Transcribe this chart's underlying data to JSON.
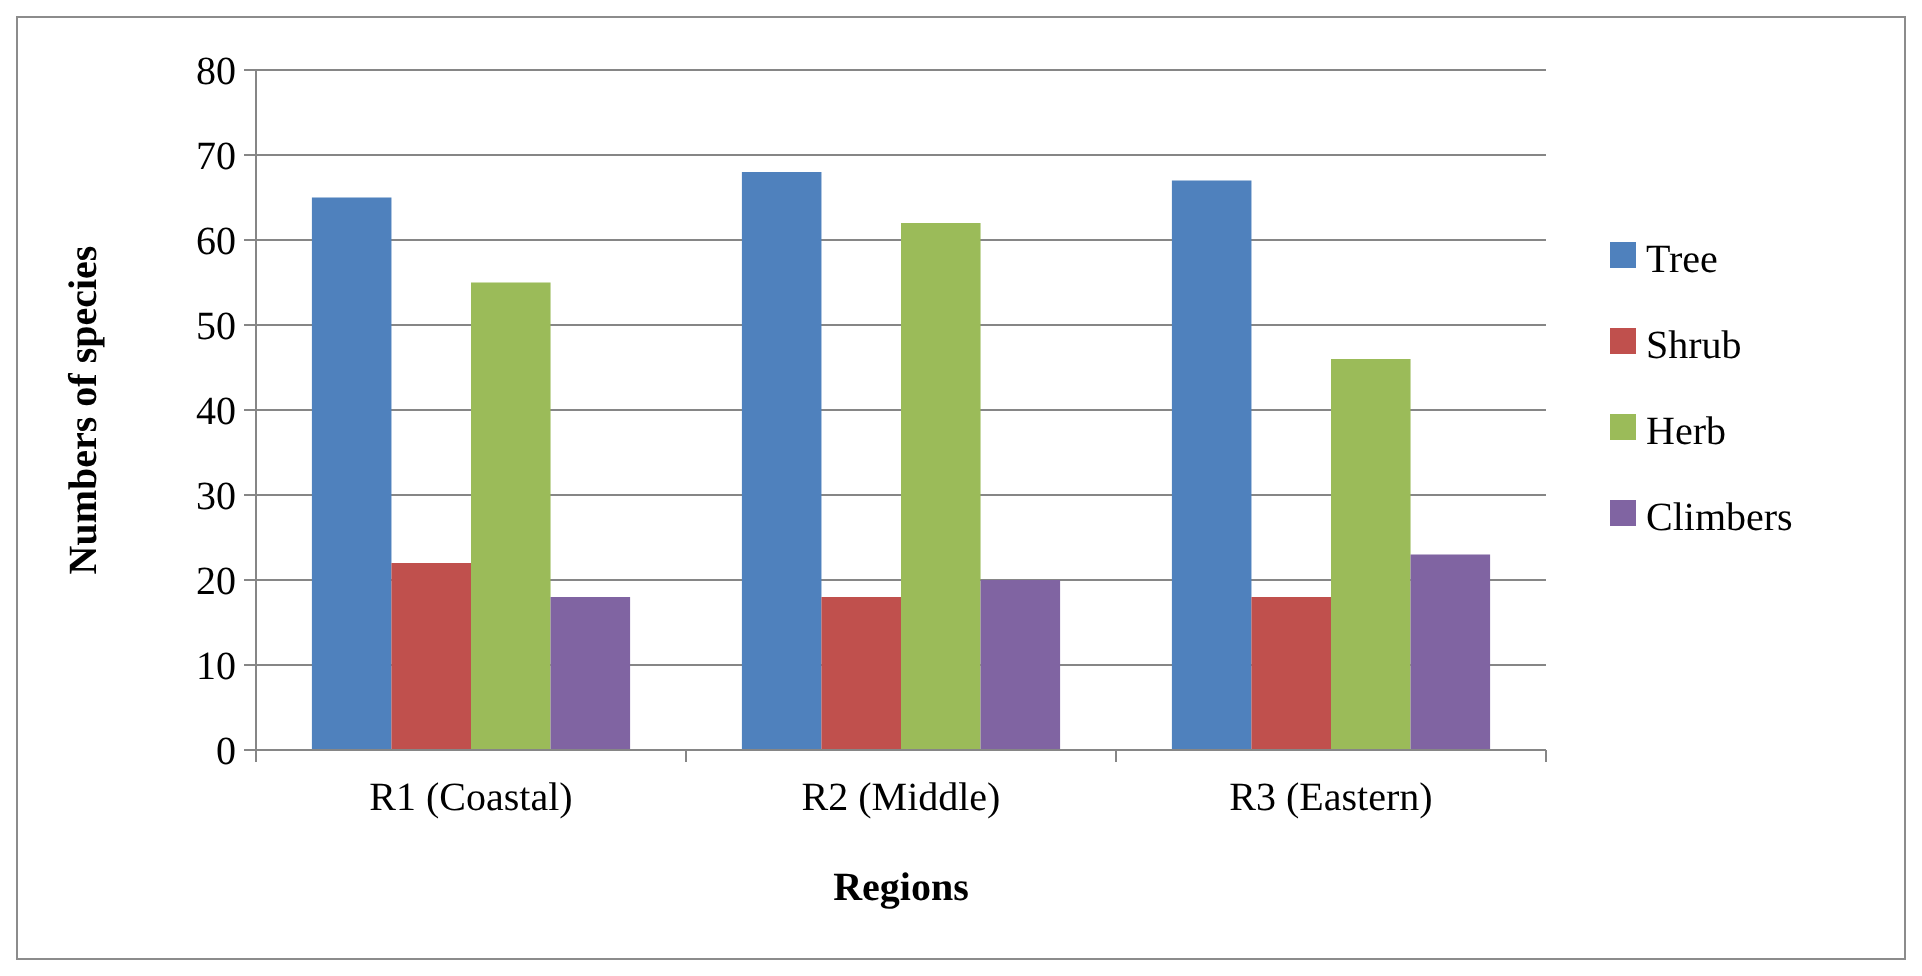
{
  "chart_data": {
    "type": "bar",
    "xlabel": "Regions",
    "ylabel": "Numbers of species",
    "categories": [
      "R1 (Coastal)",
      "R2 (Middle)",
      "R3 (Eastern)"
    ],
    "series": [
      {
        "name": "Tree",
        "color": "#4f81bd",
        "values": [
          65,
          68,
          67
        ]
      },
      {
        "name": "Shrub",
        "color": "#c0504d",
        "values": [
          22,
          18,
          18
        ]
      },
      {
        "name": "Herb",
        "color": "#9bbb59",
        "values": [
          55,
          62,
          46
        ]
      },
      {
        "name": "Climbers",
        "color": "#8064a2",
        "values": [
          18,
          20,
          23
        ]
      }
    ],
    "ylim": [
      0,
      80
    ],
    "yticks": [
      0,
      10,
      20,
      30,
      40,
      50,
      60,
      70,
      80
    ],
    "grid": "y",
    "legend": "right"
  }
}
